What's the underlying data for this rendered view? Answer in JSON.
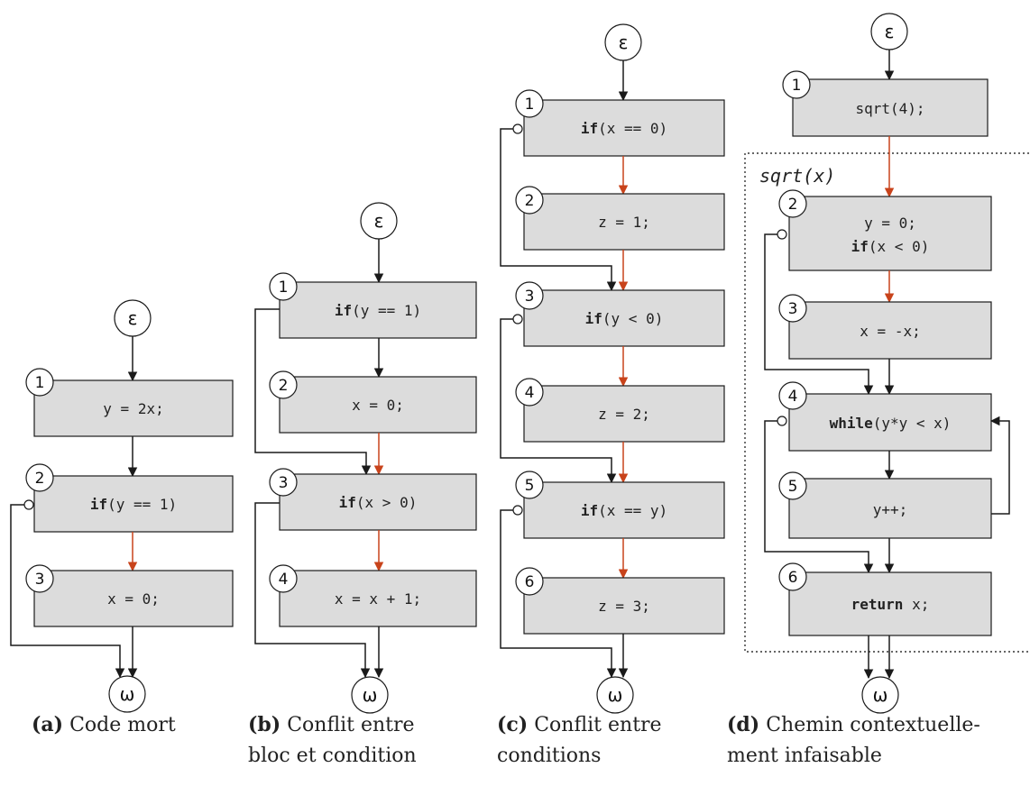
{
  "terminals": {
    "entry": "ε",
    "exit": "ω"
  },
  "context_label": "sqrt(x)",
  "panels": {
    "a": {
      "caption_label": "(a)",
      "caption_lines": [
        "Code mort"
      ],
      "blocks": [
        {
          "num": "1",
          "kw": "",
          "code": "y = 2x;"
        },
        {
          "num": "2",
          "kw": "if",
          "code": "(y == 1)"
        },
        {
          "num": "3",
          "kw": "",
          "code": "x = 0;"
        }
      ]
    },
    "b": {
      "caption_label": "(b)",
      "caption_lines": [
        "Conflit entre",
        "bloc et condition"
      ],
      "blocks": [
        {
          "num": "1",
          "kw": "if",
          "code": "(y == 1)"
        },
        {
          "num": "2",
          "kw": "",
          "code": "x = 0;"
        },
        {
          "num": "3",
          "kw": "if",
          "code": "(x > 0)"
        },
        {
          "num": "4",
          "kw": "",
          "code": "x = x + 1;"
        }
      ]
    },
    "c": {
      "caption_label": "(c)",
      "caption_lines": [
        "Conflit entre",
        "conditions"
      ],
      "blocks": [
        {
          "num": "1",
          "kw": "if",
          "code": "(x == 0)"
        },
        {
          "num": "2",
          "kw": "",
          "code": "z = 1;"
        },
        {
          "num": "3",
          "kw": "if",
          "code": "(y < 0)"
        },
        {
          "num": "4",
          "kw": "",
          "code": "z = 2;"
        },
        {
          "num": "5",
          "kw": "if",
          "code": "(x == y)"
        },
        {
          "num": "6",
          "kw": "",
          "code": "z = 3;"
        }
      ]
    },
    "d": {
      "caption_label": "(d)",
      "caption_lines": [
        "Chemin contextuelle-",
        "ment infaisable"
      ],
      "blocks": [
        {
          "num": "1",
          "kw": "",
          "code": "sqrt(4);"
        },
        {
          "num": "2",
          "line1": "y = 0;",
          "kw": "if",
          "code": "(x < 0)"
        },
        {
          "num": "3",
          "kw": "",
          "code": "x = -x;"
        },
        {
          "num": "4",
          "kw": "while",
          "code": "(y*y < x)"
        },
        {
          "num": "5",
          "kw": "",
          "code": "y++;"
        },
        {
          "num": "6",
          "kw": "return",
          "code": " x;"
        }
      ]
    }
  }
}
